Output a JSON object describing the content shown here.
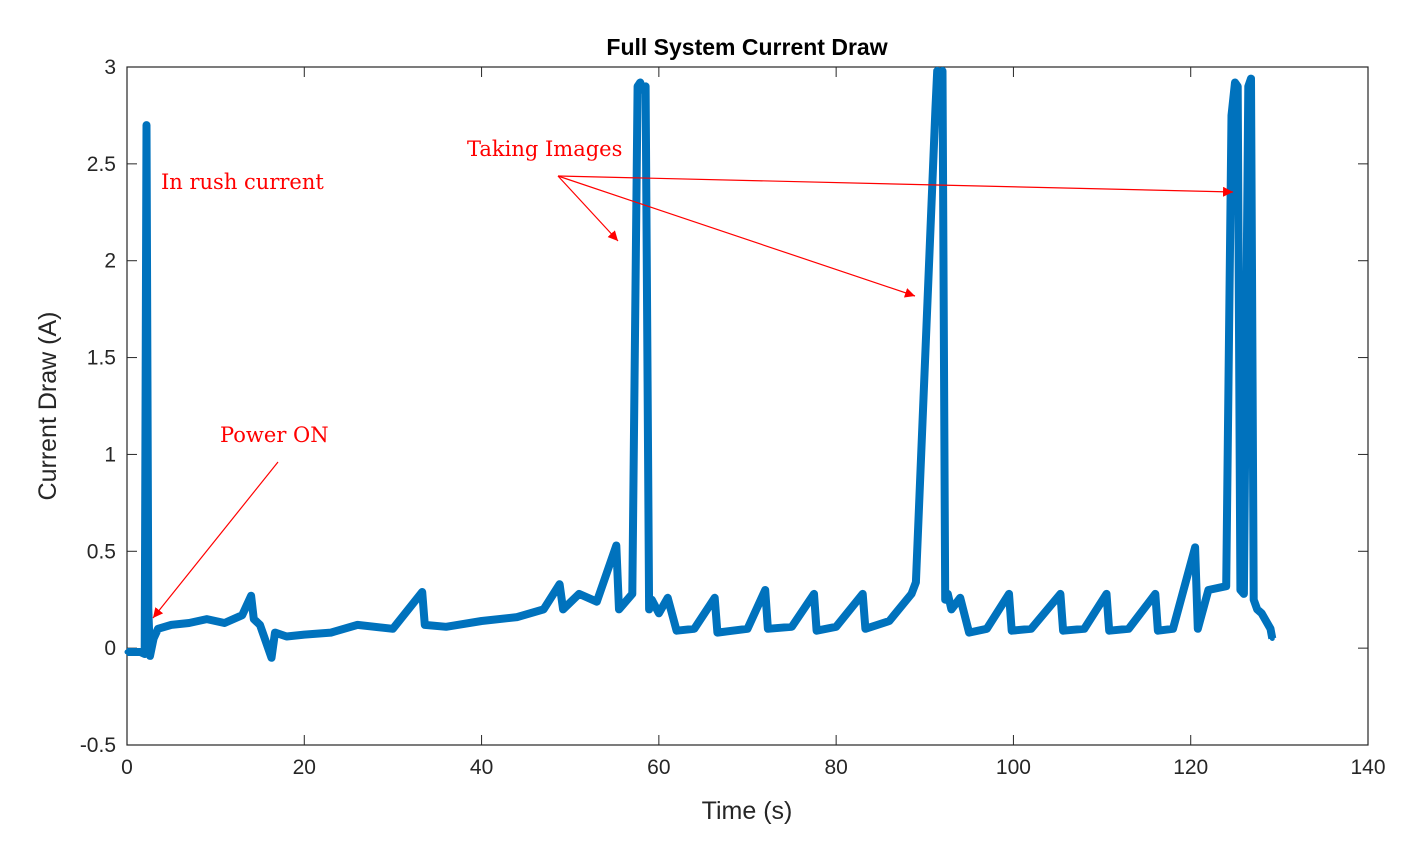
{
  "chart_data": {
    "type": "line",
    "title": "Full System Current Draw",
    "xlabel": "Time (s)",
    "ylabel": "Current Draw (A)",
    "xlim": [
      0,
      140
    ],
    "ylim": [
      -0.5,
      3
    ],
    "xticks": [
      0,
      20,
      40,
      60,
      80,
      100,
      120,
      140
    ],
    "yticks": [
      -0.5,
      0,
      0.5,
      1,
      1.5,
      2,
      2.5,
      3
    ],
    "xtick_labels": [
      "0",
      "20",
      "40",
      "60",
      "80",
      "100",
      "120",
      "140"
    ],
    "ytick_labels": [
      "-0.5",
      "0",
      "0.5",
      "1",
      "1.5",
      "2",
      "2.5",
      "3"
    ],
    "grid": false,
    "line_color": "#0072BD",
    "annotation_color": "#FF0000",
    "series": [
      {
        "name": "",
        "x": [
          0,
          1.5,
          2.0,
          2.2,
          2.4,
          2.6,
          3.0,
          3.5,
          5,
          7,
          9,
          11,
          13,
          14,
          14.3,
          15,
          16.3,
          16.7,
          18,
          20,
          23,
          26,
          30,
          33.3,
          33.6,
          36,
          40,
          44,
          47,
          48.8,
          49.2,
          51,
          53,
          55.2,
          55.5,
          57,
          57.6,
          57.9,
          58.2,
          58.5,
          58.9,
          59.2,
          60,
          61,
          62,
          64,
          66.3,
          66.6,
          70,
          72,
          72.3,
          75,
          77.5,
          77.8,
          80,
          83,
          83.3,
          86,
          88.5,
          89,
          91.2,
          91.4,
          91.7,
          92,
          92.3,
          92.6,
          93,
          94,
          95,
          97,
          99.5,
          99.8,
          102,
          105.3,
          105.6,
          108,
          110.5,
          110.8,
          113,
          116,
          116.3,
          118,
          120.5,
          120.8,
          122,
          124,
          124.6,
          125,
          125.3,
          125.6,
          126,
          126.5,
          126.8,
          127.1,
          127.5,
          128,
          129,
          129.2
        ],
        "values": [
          -0.02,
          -0.02,
          -0.03,
          2.7,
          0.2,
          -0.04,
          0.05,
          0.1,
          0.12,
          0.13,
          0.15,
          0.13,
          0.17,
          0.27,
          0.15,
          0.12,
          -0.05,
          0.08,
          0.06,
          0.07,
          0.08,
          0.12,
          0.1,
          0.29,
          0.12,
          0.11,
          0.14,
          0.16,
          0.2,
          0.33,
          0.2,
          0.28,
          0.24,
          0.53,
          0.2,
          0.28,
          2.9,
          2.92,
          2.88,
          2.9,
          0.2,
          0.25,
          0.18,
          0.26,
          0.09,
          0.1,
          0.26,
          0.08,
          0.1,
          0.3,
          0.1,
          0.11,
          0.28,
          0.09,
          0.11,
          0.28,
          0.1,
          0.14,
          0.28,
          0.34,
          2.78,
          2.98,
          2.85,
          2.98,
          0.25,
          0.28,
          0.2,
          0.26,
          0.08,
          0.1,
          0.28,
          0.09,
          0.1,
          0.28,
          0.09,
          0.1,
          0.28,
          0.09,
          0.1,
          0.28,
          0.09,
          0.1,
          0.52,
          0.1,
          0.3,
          0.32,
          2.75,
          2.92,
          2.9,
          0.3,
          0.28,
          2.9,
          2.94,
          0.25,
          0.2,
          0.18,
          0.1,
          0.05
        ]
      }
    ],
    "annotations": [
      {
        "text": "In rush current"
      },
      {
        "text": "Power ON"
      },
      {
        "text": "Taking Images"
      }
    ]
  }
}
